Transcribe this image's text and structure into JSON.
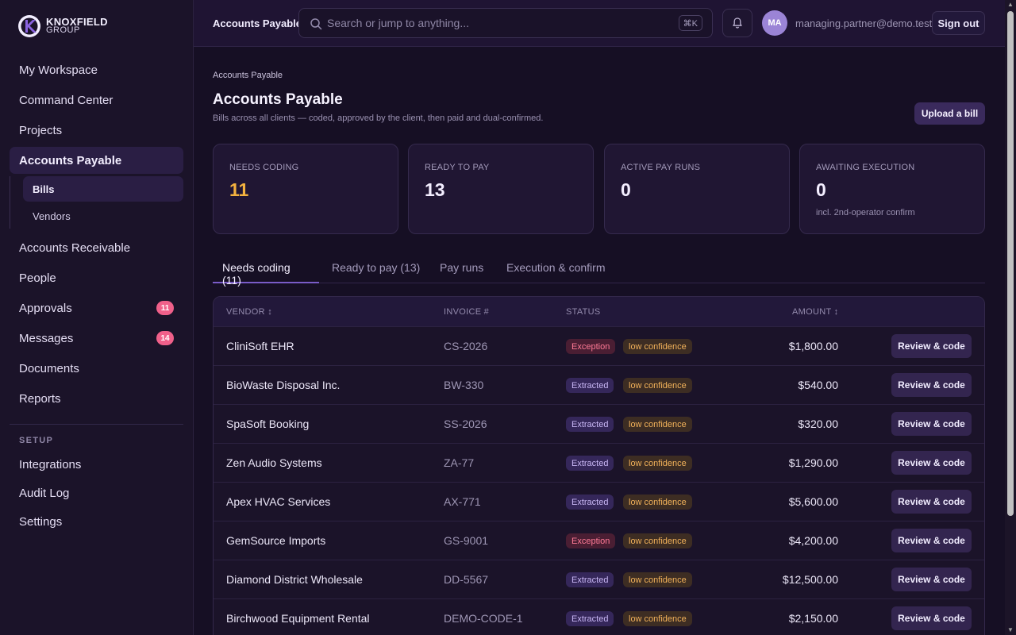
{
  "brand": {
    "name": "KNOXFIELD",
    "sub": "GROUP"
  },
  "sidebar": {
    "items": [
      {
        "label": "My Workspace"
      },
      {
        "label": "Command Center"
      },
      {
        "label": "Projects"
      },
      {
        "label": "Accounts Payable",
        "active": true
      },
      {
        "label": "Accounts Receivable"
      },
      {
        "label": "People"
      },
      {
        "label": "Approvals",
        "badge": "11"
      },
      {
        "label": "Messages",
        "badge": "14"
      },
      {
        "label": "Documents"
      },
      {
        "label": "Reports"
      }
    ],
    "subitems": [
      {
        "label": "Bills",
        "active": true
      },
      {
        "label": "Vendors"
      }
    ],
    "setup_label": "SETUP",
    "setup_items": [
      {
        "label": "Integrations"
      },
      {
        "label": "Audit Log"
      },
      {
        "label": "Settings"
      }
    ]
  },
  "topbar": {
    "title": "Accounts Payable",
    "search_placeholder": "Search or jump to anything...",
    "shortcut": "⌘K",
    "avatar_initials": "MA",
    "user_email": "managing.partner@demo.test",
    "signout_label": "Sign out"
  },
  "page": {
    "breadcrumb": "Accounts Payable",
    "title": "Accounts Payable",
    "subtitle": "Bills across all clients — coded, approved by the client, then paid and dual-confirmed.",
    "upload_label": "Upload a bill"
  },
  "stats": [
    {
      "label": "NEEDS CODING",
      "value": "11",
      "color": "#f3b23f",
      "note": ""
    },
    {
      "label": "READY TO PAY",
      "value": "13",
      "color": "#f3eeff",
      "note": ""
    },
    {
      "label": "ACTIVE PAY RUNS",
      "value": "0",
      "color": "#f3eeff",
      "note": ""
    },
    {
      "label": "AWAITING EXECUTION",
      "value": "0",
      "color": "#f3eeff",
      "note": "incl. 2nd-operator confirm"
    }
  ],
  "tabs": [
    {
      "label": "Needs coding (11)",
      "active": true
    },
    {
      "label": "Ready to pay (13)"
    },
    {
      "label": "Pay runs"
    },
    {
      "label": "Execution & confirm"
    }
  ],
  "table": {
    "headers": {
      "vendor": "VENDOR ↕",
      "invoice": "INVOICE #",
      "status": "STATUS",
      "amount": "AMOUNT ↕"
    },
    "review_label": "Review & code",
    "rows": [
      {
        "vendor": "CliniSoft EHR",
        "invoice": "CS-2026",
        "status": "Exception",
        "confidence": "low confidence",
        "amount": "$1,800.00"
      },
      {
        "vendor": "BioWaste Disposal Inc.",
        "invoice": "BW-330",
        "status": "Extracted",
        "confidence": "low confidence",
        "amount": "$540.00"
      },
      {
        "vendor": "SpaSoft Booking",
        "invoice": "SS-2026",
        "status": "Extracted",
        "confidence": "low confidence",
        "amount": "$320.00"
      },
      {
        "vendor": "Zen Audio Systems",
        "invoice": "ZA-77",
        "status": "Extracted",
        "confidence": "low confidence",
        "amount": "$1,290.00"
      },
      {
        "vendor": "Apex HVAC Services",
        "invoice": "AX-771",
        "status": "Extracted",
        "confidence": "low confidence",
        "amount": "$5,600.00"
      },
      {
        "vendor": "GemSource Imports",
        "invoice": "GS-9001",
        "status": "Exception",
        "confidence": "low confidence",
        "amount": "$4,200.00"
      },
      {
        "vendor": "Diamond District Wholesale",
        "invoice": "DD-5567",
        "status": "Extracted",
        "confidence": "low confidence",
        "amount": "$12,500.00"
      },
      {
        "vendor": "Birchwood Equipment Rental",
        "invoice": "DEMO-CODE-1",
        "status": "Extracted",
        "confidence": "low confidence",
        "amount": "$2,150.00"
      }
    ]
  },
  "colors": {
    "accent": "#7a5cc8",
    "badge": "#f0608a",
    "needs_coding": "#f3b23f"
  }
}
